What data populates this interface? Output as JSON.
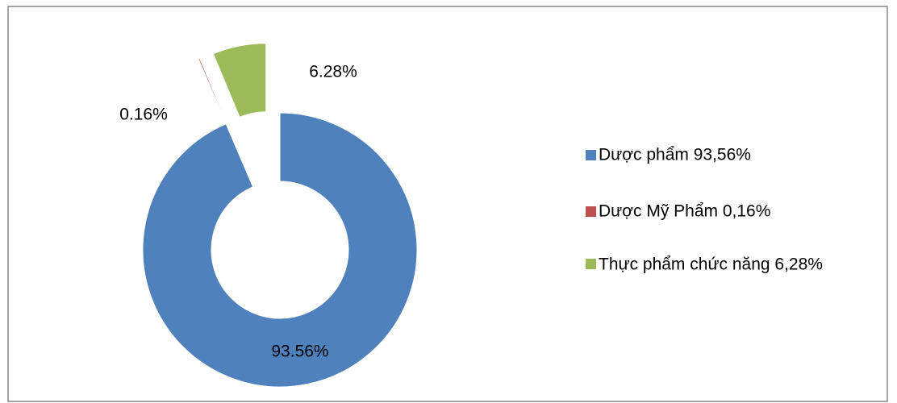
{
  "chart_data": {
    "type": "pie",
    "categories": [
      "Dược phẩm 93,56%",
      "Dược Mỹ Phẩm 0,16%",
      "Thực phẩm chức năng 6,28%"
    ],
    "values": [
      93.56,
      0.16,
      6.28
    ],
    "value_labels": [
      "93.56%",
      "0.16%",
      "6.28%"
    ],
    "colors": [
      "#4f81bd",
      "#c0504d",
      "#9bbb59"
    ],
    "legend": "right"
  }
}
